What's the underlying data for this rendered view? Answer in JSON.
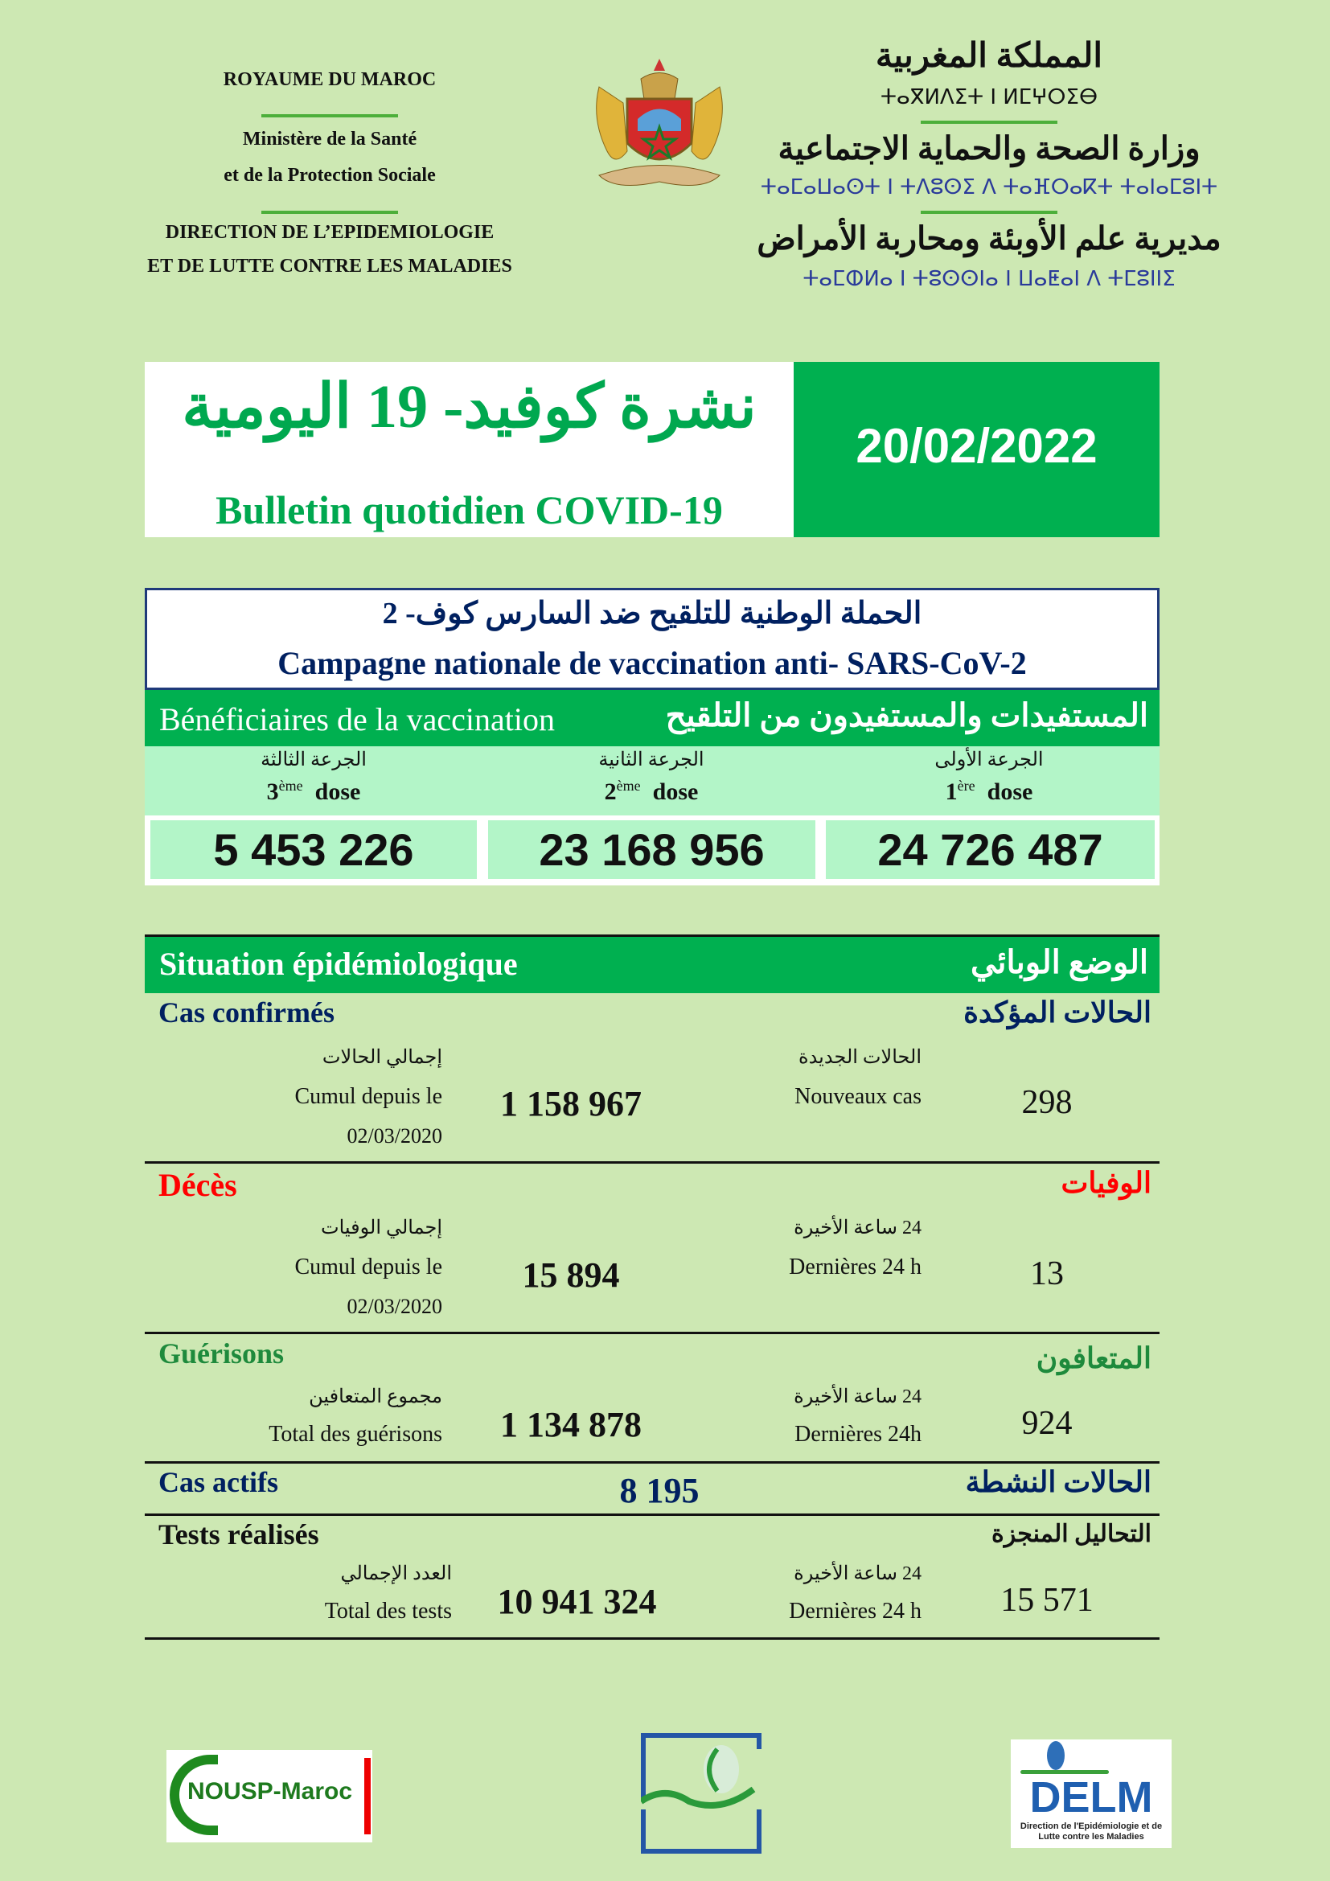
{
  "header": {
    "left": {
      "kingdom": "ROYAUME DU MAROC",
      "ministry_1": "Ministère de la Santé",
      "ministry_2": "et de la Protection Sociale",
      "direction_1": "DIRECTION DE L’EPIDEMIOLOGIE",
      "direction_2": "ET DE LUTTE CONTRE LES MALADIES"
    },
    "right": {
      "kingdom_ar": "المملكة المغربية",
      "kingdom_tif": "ⵜⴰⴳⵍⴷⵉⵜ ⵏ ⵍⵎⵖⵔⵉⴱ",
      "ministry_ar": "وزارة الصحة والحماية الاجتماعية",
      "ministry_tif": "ⵜⴰⵎⴰⵡⴰⵙⵜ ⵏ ⵜⴷⵓⵙⵉ ⴷ ⵜⴰⴼⵔⴰⴽⵜ ⵜⴰⵏⴰⵎⵓⵏⵜ",
      "direction_ar": "مديرية علم الأوبئة ومحاربة الأمراض",
      "direction_tif": "ⵜⴰⵎⵀⵍⴰ ⵏ ⵜⵓⵙⵙⵏⴰ ⵏ ⵡⴰⵟⴰⵏ ⴷ ⵜⵎⵓⵏⵏⵉ"
    }
  },
  "title": {
    "ar": "نشرة كوفيد- 19 اليومية",
    "fr": "Bulletin quotidien COVID-19",
    "date": "20/02/2022"
  },
  "campaign": {
    "ar": "الحملة الوطنية للتلقيح ضد السارس كوف- 2",
    "fr": "Campagne nationale de vaccination anti- SARS-CoV-2"
  },
  "beneficiaries": {
    "fr": "Bénéficiaires de la vaccination",
    "ar": "المستفيدات والمستفيدون من التلقيح",
    "doses": [
      {
        "ar": "الجرعة الثالثة",
        "num": "3",
        "sup": "ème",
        "word": "dose",
        "value": "5 453 226"
      },
      {
        "ar": "الجرعة الثانية",
        "num": "2",
        "sup": "ème",
        "word": "dose",
        "value": "23 168 956"
      },
      {
        "ar": "الجرعة الأولى",
        "num": "1",
        "sup": "ère",
        "word": "dose",
        "value": "24 726 487"
      }
    ]
  },
  "situation": {
    "fr": "Situation épidémiologique",
    "ar": "الوضع الوبائي",
    "confirmed": {
      "fr": "Cas confirmés",
      "ar": "الحالات المؤكدة",
      "total_ar": "إجمالي الحالات",
      "total_fr": "Cumul depuis le",
      "total_date": "02/03/2020",
      "total": "1 158 967",
      "new_ar": "الحالات الجديدة",
      "new_fr": "Nouveaux cas",
      "new": "298"
    },
    "deaths": {
      "fr": "Décès",
      "ar": "الوفيات",
      "total_ar": "إجمالي الوفيات",
      "total_fr": "Cumul depuis le",
      "total_date": "02/03/2020",
      "total": "15 894",
      "new_ar": "24 ساعة الأخيرة",
      "new_fr": "Dernières 24 h",
      "new": "13"
    },
    "recovered": {
      "fr": "Guérisons",
      "ar": "المتعافون",
      "total_ar": "مجموع المتعافين",
      "total_fr": "Total des guérisons",
      "total": "1 134 878",
      "new_ar": "24 ساعة الأخيرة",
      "new_fr": "Dernières 24h",
      "new": "924"
    },
    "active": {
      "fr": "Cas actifs",
      "ar": "الحالات النشطة",
      "value": "8 195"
    },
    "tests": {
      "fr": "Tests réalisés",
      "ar": "التحاليل المنجزة",
      "total_ar": "العدد الإجمالي",
      "total_fr": "Total des tests",
      "total": "10 941 324",
      "new_ar": "24 ساعة الأخيرة",
      "new_fr": "Dernières 24 h",
      "new": "15 571"
    }
  },
  "logos": {
    "nousp": "NOUSP-Maroc",
    "delm": "DELM",
    "delm_sub": "Direction de l'Epidémiologie et de Lutte contre les Maladies"
  },
  "colors": {
    "green": "#00b050",
    "navy": "#002060",
    "red": "#ff0000",
    "background": "#cde8b3",
    "light_green": "#b3f5c8"
  }
}
